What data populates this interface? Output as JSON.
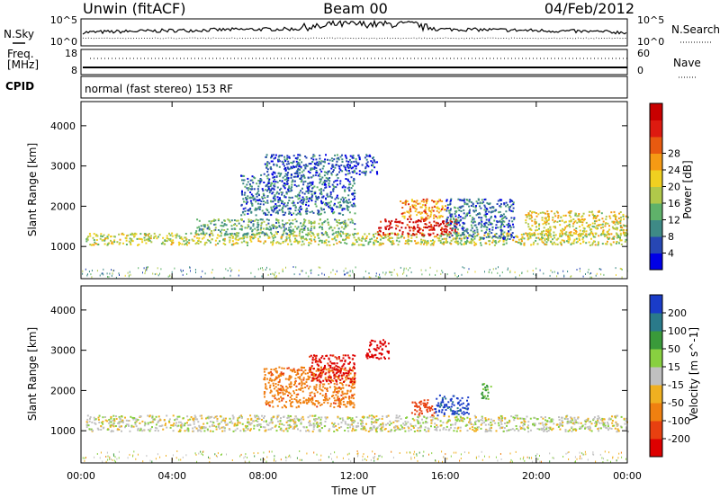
{
  "header": {
    "title_left": "Unwin (fitACF)",
    "title_center": "Beam 00",
    "title_right": "04/Feb/2012"
  },
  "noise_panel": {
    "left_label": "N.Sky",
    "right_label": "N.Search",
    "left_ticks": [
      "10^5",
      "10^0"
    ],
    "right_ticks": [
      "10^5",
      "10^0"
    ]
  },
  "freq_panel": {
    "left_label_1": "Freq.",
    "left_label_2": "[MHz]",
    "right_label": "Nave",
    "left_ticks": [
      "18",
      "8"
    ],
    "right_ticks": [
      "60",
      "0"
    ],
    "cpid_label": "CPID",
    "cpid_text": "normal (fast stereo) 153 RF"
  },
  "chart_data": [
    {
      "type": "heatmap",
      "title": "Power",
      "ylabel": "Slant Range [km]",
      "ylim": [
        200,
        4600
      ],
      "xlim": [
        0,
        24
      ],
      "x_ticks": [
        "00:00",
        "04:00",
        "08:00",
        "12:00",
        "16:00",
        "20:00",
        "00:00"
      ],
      "y_ticks": [
        1000,
        2000,
        3000,
        4000
      ],
      "colorbar": {
        "label": "Power [dB]",
        "ticks": [
          4,
          8,
          12,
          16,
          20,
          24,
          28
        ],
        "colors": [
          "#0000e6",
          "#2747b4",
          "#3e8a86",
          "#5fb26a",
          "#b0c84a",
          "#f0d020",
          "#f59a14",
          "#e85a10",
          "#dd1a10",
          "#c80000"
        ]
      },
      "regions": [
        {
          "x0": 0.2,
          "x1": 24,
          "y0": 1050,
          "y1": 1350,
          "value": 14
        },
        {
          "x0": 5,
          "x1": 12,
          "y0": 1300,
          "y1": 1700,
          "value": 10
        },
        {
          "x0": 7,
          "x1": 12,
          "y0": 1800,
          "y1": 2800,
          "value": 6
        },
        {
          "x0": 8,
          "x1": 13,
          "y0": 2800,
          "y1": 3300,
          "value": 5
        },
        {
          "x0": 13,
          "x1": 16.5,
          "y0": 1300,
          "y1": 1700,
          "value": 27
        },
        {
          "x0": 14,
          "x1": 16,
          "y0": 1700,
          "y1": 2200,
          "value": 20
        },
        {
          "x0": 19.5,
          "x1": 24,
          "y0": 1300,
          "y1": 1900,
          "value": 16
        },
        {
          "x0": 16,
          "x1": 19,
          "y0": 1200,
          "y1": 2200,
          "value": 6
        }
      ]
    },
    {
      "type": "heatmap",
      "title": "Velocity",
      "ylabel": "Slant Range [km]",
      "xlabel": "Time UT",
      "ylim": [
        200,
        4600
      ],
      "xlim": [
        0,
        24
      ],
      "x_ticks": [
        "00:00",
        "04:00",
        "08:00",
        "12:00",
        "16:00",
        "20:00",
        "00:00"
      ],
      "y_ticks": [
        1000,
        2000,
        3000,
        4000
      ],
      "colorbar": {
        "label": "Velocity [m s^-1]",
        "ticks": [
          200,
          100,
          50,
          15,
          -15,
          -50,
          -100,
          -200
        ],
        "colors": [
          "#1a3cc8",
          "#2a7a8a",
          "#3a9a3a",
          "#88d040",
          "#c0c0c0",
          "#f0b020",
          "#f08010",
          "#e84010",
          "#dd0000"
        ]
      },
      "regions": [
        {
          "x0": 0.2,
          "x1": 24,
          "y0": 1000,
          "y1": 1400,
          "value": 0
        },
        {
          "x0": 8,
          "x1": 12,
          "y0": 1600,
          "y1": 2600,
          "value": -80
        },
        {
          "x0": 10,
          "x1": 12,
          "y0": 2200,
          "y1": 2900,
          "value": -220
        },
        {
          "x0": 14.5,
          "x1": 15.5,
          "y0": 1400,
          "y1": 1800,
          "value": -150
        },
        {
          "x0": 15.5,
          "x1": 17,
          "y0": 1400,
          "y1": 1900,
          "value": 220
        },
        {
          "x0": 12.5,
          "x1": 13.5,
          "y0": 2800,
          "y1": 3300,
          "value": -230
        },
        {
          "x0": 17.5,
          "x1": 18,
          "y0": 1800,
          "y1": 2200,
          "value": 60
        }
      ]
    }
  ]
}
